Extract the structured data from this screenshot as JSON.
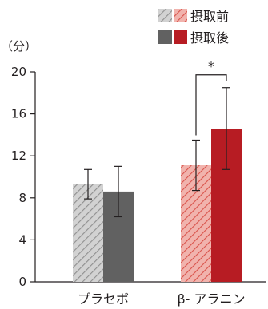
{
  "chart_data": {
    "type": "bar",
    "unit_label": "（分）",
    "categories": [
      "プラセボ",
      "β- アラニン"
    ],
    "series": [
      {
        "name": "摂取前",
        "style": "hatched",
        "colors": [
          "#bdbdbd",
          "#e0736b"
        ],
        "values": [
          9.3,
          11.1
        ],
        "errors": [
          1.4,
          2.4
        ]
      },
      {
        "name": "摂取後",
        "style": "solid",
        "colors": [
          "#616161",
          "#b71c23"
        ],
        "values": [
          8.6,
          14.6
        ],
        "errors": [
          2.4,
          3.9
        ]
      }
    ],
    "ylim": [
      0,
      20
    ],
    "yticks": [
      "0",
      "4",
      "8",
      "12",
      "16",
      "20"
    ],
    "grid": false,
    "legend": "top-right",
    "significance": {
      "category_index": 1,
      "label": "*"
    }
  }
}
